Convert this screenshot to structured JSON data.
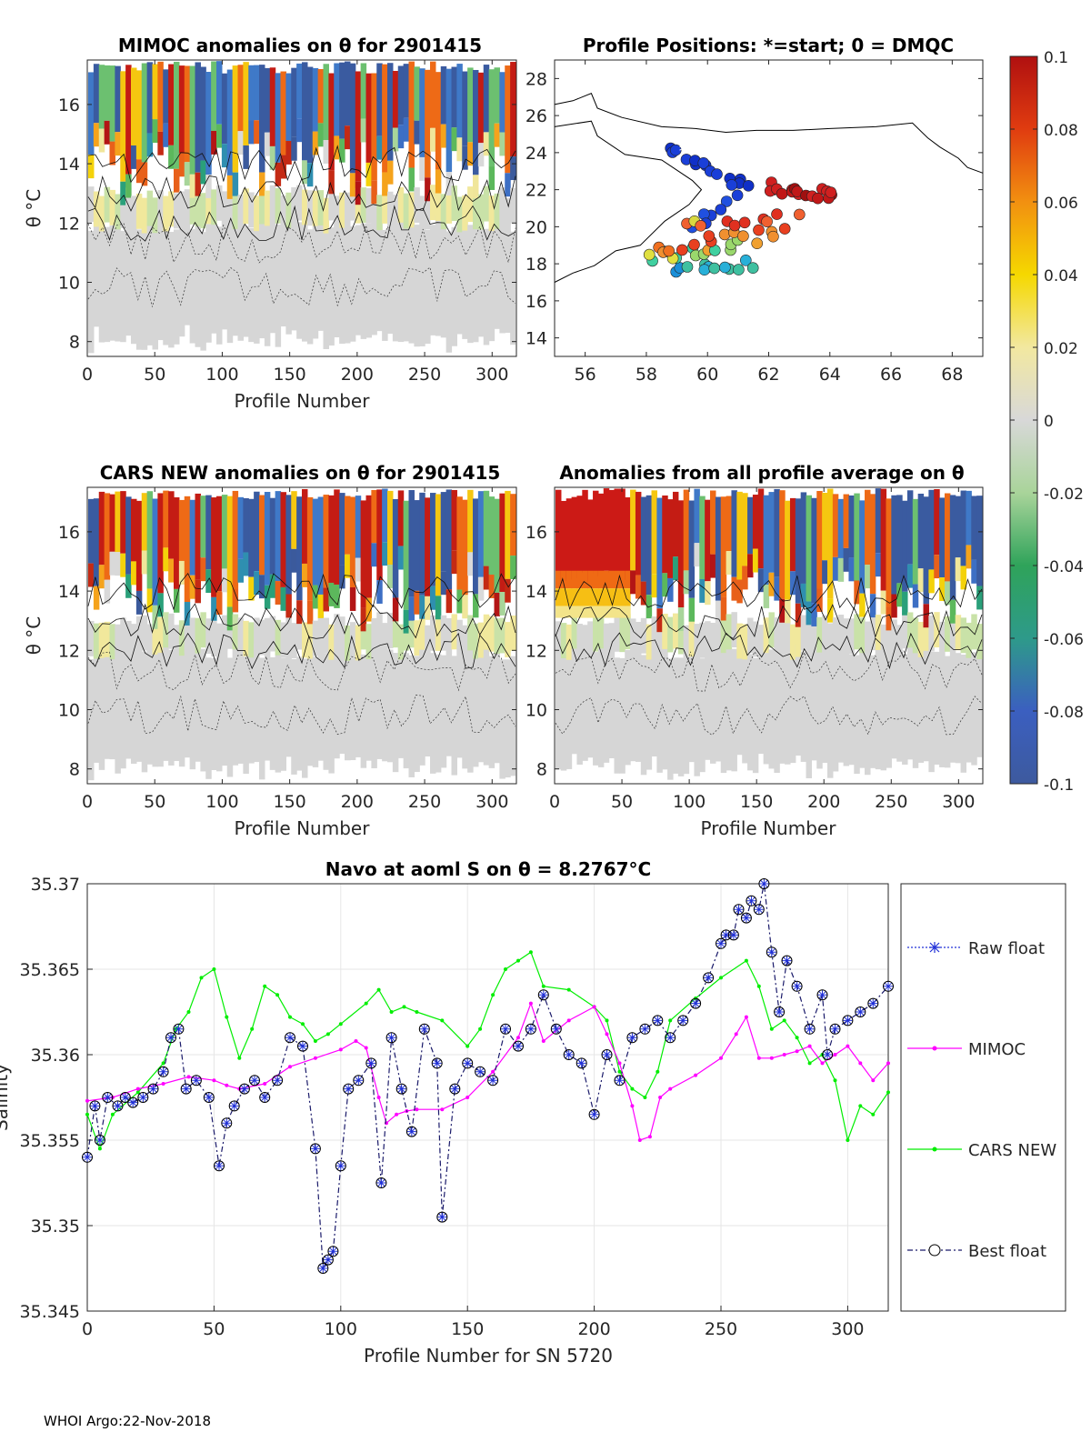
{
  "footer": "WHOI Argo:22-Nov-2018",
  "colorbar": {
    "ticks": [
      "0.1",
      "0.08",
      "0.06",
      "0.04",
      "0.02",
      "0",
      "-0.02",
      "-0.04",
      "-0.06",
      "-0.08",
      "-0.1"
    ],
    "range": [
      -0.1,
      0.1
    ]
  },
  "chart_data": [
    {
      "type": "heatmap",
      "title": "MIMOC anomalies on θ  for 2901415",
      "xlabel": "Profile Number",
      "ylabel": "θ °C",
      "xlim": [
        0,
        318
      ],
      "ylim": [
        7.5,
        17.5
      ],
      "xticks": [
        "0",
        "50",
        "100",
        "150",
        "200",
        "250",
        "300"
      ],
      "yticks": [
        "8",
        "10",
        "12",
        "14",
        "16"
      ]
    },
    {
      "type": "scatter",
      "title": "Profile Positions: *=start; 0 = DMQC",
      "xlabel": "",
      "ylabel": "",
      "xlim": [
        55,
        69
      ],
      "ylim": [
        13,
        29
      ],
      "xticks": [
        "56",
        "58",
        "60",
        "62",
        "64",
        "66",
        "68"
      ],
      "yticks": [
        "14",
        "16",
        "18",
        "20",
        "22",
        "24",
        "26",
        "28"
      ]
    },
    {
      "type": "heatmap",
      "title": "CARS NEW anomalies on θ for 2901415",
      "xlabel": "Profile Number",
      "ylabel": "θ °C",
      "xlim": [
        0,
        318
      ],
      "ylim": [
        7.5,
        17.5
      ],
      "xticks": [
        "0",
        "50",
        "100",
        "150",
        "200",
        "250",
        "300"
      ],
      "yticks": [
        "8",
        "10",
        "12",
        "14",
        "16"
      ]
    },
    {
      "type": "heatmap",
      "title": "Anomalies from all profile average on θ",
      "xlabel": "Profile Number",
      "ylabel": "",
      "xlim": [
        0,
        318
      ],
      "ylim": [
        7.5,
        17.5
      ],
      "xticks": [
        "0",
        "50",
        "100",
        "150",
        "200",
        "250",
        "300"
      ],
      "yticks": [
        "8",
        "10",
        "12",
        "14",
        "16"
      ]
    },
    {
      "type": "line",
      "title": "Navo at aoml S on θ = 8.2767°C",
      "xlabel": "Profile Number for SN 5720",
      "ylabel": "Salinity",
      "xlim": [
        0,
        316
      ],
      "ylim": [
        35.345,
        35.37
      ],
      "xticks": [
        "0",
        "50",
        "100",
        "150",
        "200",
        "250",
        "300"
      ],
      "yticks": [
        "35.345",
        "35.35",
        "35.355",
        "35.36",
        "35.365",
        "35.37"
      ],
      "legend": [
        "Raw float",
        "MIMOC",
        "CARS NEW",
        "Best float"
      ],
      "series": [
        {
          "name": "Best float",
          "x": [
            0,
            3,
            5,
            8,
            12,
            15,
            18,
            22,
            26,
            30,
            33,
            36,
            39,
            43,
            48,
            52,
            55,
            58,
            62,
            66,
            70,
            75,
            80,
            85,
            90,
            93,
            95,
            97,
            100,
            103,
            107,
            112,
            116,
            120,
            124,
            128,
            133,
            138,
            140,
            145,
            150,
            155,
            160,
            165,
            170,
            175,
            180,
            185,
            190,
            195,
            200,
            205,
            210,
            215,
            220,
            225,
            230,
            235,
            240,
            245,
            250,
            252,
            255,
            257,
            260,
            262,
            265,
            267,
            270,
            273,
            276,
            280,
            285,
            290,
            292,
            295,
            300,
            305,
            310,
            316
          ],
          "values": [
            35.354,
            35.357,
            35.355,
            35.3575,
            35.357,
            35.3575,
            35.3572,
            35.3575,
            35.358,
            35.359,
            35.361,
            35.3615,
            35.358,
            35.3585,
            35.3575,
            35.3535,
            35.356,
            35.357,
            35.358,
            35.3585,
            35.3575,
            35.3585,
            35.361,
            35.3605,
            35.3545,
            35.3475,
            35.348,
            35.3485,
            35.3535,
            35.358,
            35.3585,
            35.3595,
            35.3525,
            35.361,
            35.358,
            35.3555,
            35.3615,
            35.3595,
            35.3505,
            35.358,
            35.3595,
            35.359,
            35.3585,
            35.3615,
            35.3605,
            35.3615,
            35.3635,
            35.3615,
            35.36,
            35.3595,
            35.3565,
            35.36,
            35.3585,
            35.361,
            35.3615,
            35.362,
            35.361,
            35.362,
            35.363,
            35.3645,
            35.3665,
            35.367,
            35.367,
            35.3685,
            35.368,
            35.369,
            35.3685,
            35.37,
            35.366,
            35.3625,
            35.3655,
            35.364,
            35.3615,
            35.3635,
            35.36,
            35.3615,
            35.362,
            35.3625,
            35.363,
            35.364
          ]
        },
        {
          "name": "MIMOC",
          "x": [
            0,
            10,
            20,
            30,
            40,
            50,
            55,
            60,
            70,
            80,
            90,
            100,
            106,
            110,
            115,
            118,
            122,
            126,
            130,
            140,
            150,
            160,
            170,
            175,
            180,
            190,
            200,
            205,
            210,
            215,
            218,
            222,
            226,
            230,
            240,
            250,
            256,
            260,
            265,
            270,
            275,
            280,
            285,
            290,
            295,
            300,
            305,
            310,
            316
          ],
          "values": [
            35.3573,
            35.3575,
            35.358,
            35.3583,
            35.3587,
            35.3585,
            35.3582,
            35.358,
            35.3583,
            35.3593,
            35.3598,
            35.3603,
            35.3608,
            35.3604,
            35.3575,
            35.356,
            35.3565,
            35.3567,
            35.3568,
            35.3568,
            35.3575,
            35.359,
            35.361,
            35.363,
            35.3608,
            35.362,
            35.3628,
            35.3612,
            35.3595,
            35.357,
            35.355,
            35.3552,
            35.3575,
            35.358,
            35.3588,
            35.3598,
            35.3612,
            35.3622,
            35.3598,
            35.3598,
            35.36,
            35.3602,
            35.3605,
            35.3595,
            35.36,
            35.3605,
            35.3595,
            35.3585,
            35.3595
          ]
        },
        {
          "name": "CARS NEW",
          "x": [
            0,
            5,
            10,
            20,
            30,
            35,
            40,
            45,
            50,
            55,
            60,
            65,
            70,
            75,
            80,
            85,
            90,
            95,
            100,
            110,
            115,
            120,
            125,
            130,
            140,
            150,
            155,
            160,
            165,
            170,
            175,
            180,
            190,
            200,
            205,
            210,
            215,
            220,
            225,
            230,
            240,
            250,
            260,
            265,
            270,
            275,
            280,
            285,
            290,
            295,
            300,
            305,
            310,
            316
          ],
          "values": [
            35.3565,
            35.3545,
            35.3565,
            35.3578,
            35.3595,
            35.3615,
            35.3625,
            35.3645,
            35.365,
            35.3622,
            35.3598,
            35.3615,
            35.364,
            35.3635,
            35.3622,
            35.3618,
            35.3608,
            35.3612,
            35.3618,
            35.363,
            35.3638,
            35.3625,
            35.3628,
            35.3625,
            35.362,
            35.3605,
            35.3615,
            35.3635,
            35.365,
            35.3655,
            35.366,
            35.364,
            35.3638,
            35.3628,
            35.362,
            35.359,
            35.358,
            35.3575,
            35.359,
            35.362,
            35.3633,
            35.3645,
            35.3655,
            35.364,
            35.3615,
            35.362,
            35.361,
            35.3595,
            35.36,
            35.3585,
            35.355,
            35.357,
            35.3565,
            35.3578
          ]
        }
      ]
    }
  ]
}
